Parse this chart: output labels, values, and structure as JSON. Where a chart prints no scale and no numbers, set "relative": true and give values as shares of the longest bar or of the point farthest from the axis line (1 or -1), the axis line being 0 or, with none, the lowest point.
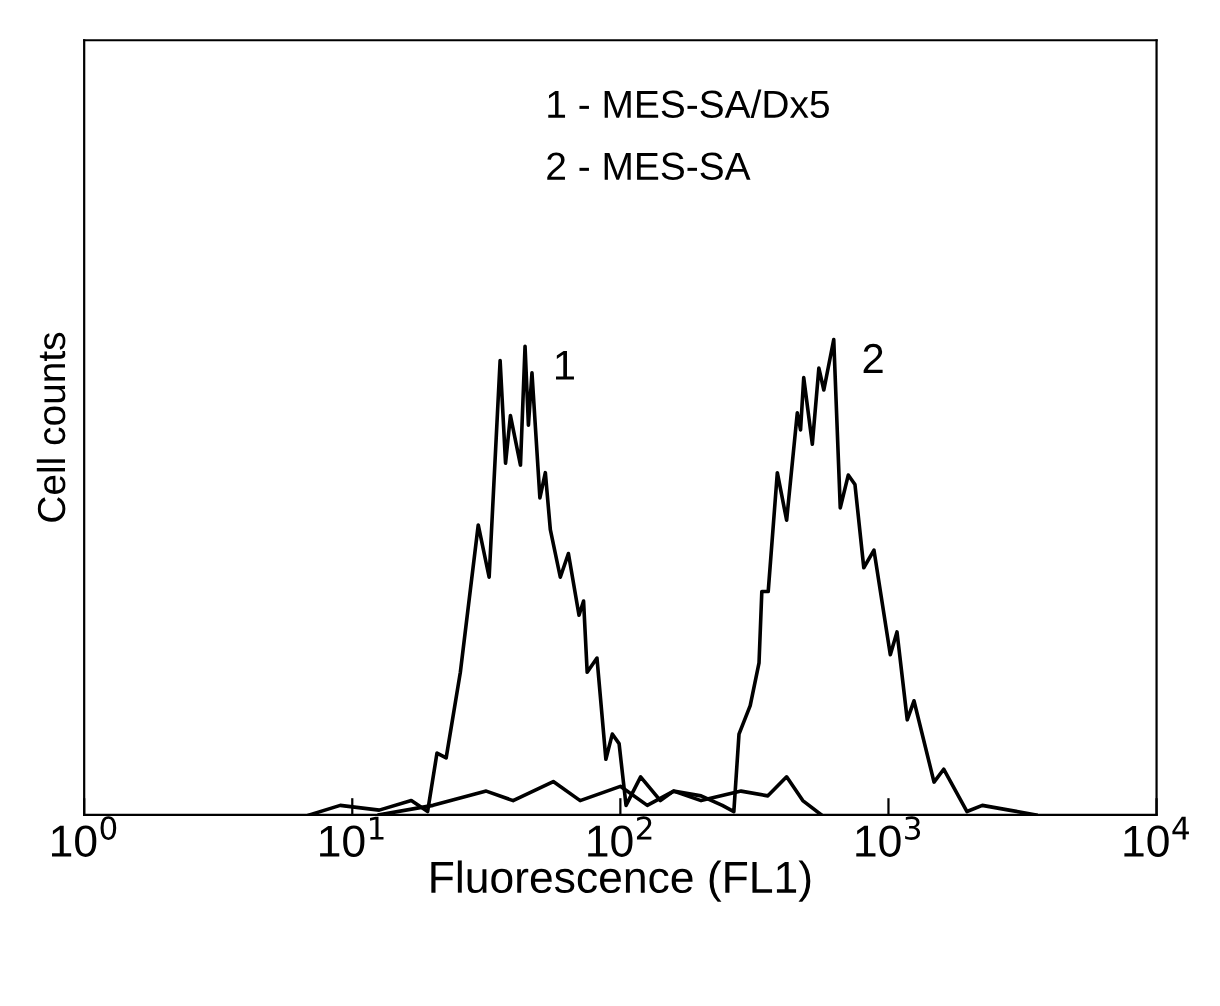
{
  "chart_data": {
    "type": "line",
    "xlabel": "Fluorescence (FL1)",
    "ylabel": "Cell counts",
    "relative": true,
    "log": "x",
    "xlim": [
      1,
      10000
    ],
    "xticks": [
      {
        "value": 1,
        "label": "10$^{0}$"
      },
      {
        "value": 10,
        "label": "10$^{1}$"
      },
      {
        "value": 100,
        "label": "10$^{2}$"
      },
      {
        "value": 1000,
        "label": "10$^{3}$"
      },
      {
        "value": 10000,
        "label": "10$^{4}$"
      }
    ],
    "tick_labels": "x",
    "grid": false,
    "legend": false,
    "marker": "none",
    "line_style": "solid",
    "series": [
      {
        "name": "1",
        "color": "#000000",
        "x": [
          6.92,
          9.02,
          12.6,
          16.6,
          19.1,
          20.7,
          22.4,
          25.3,
          29.5,
          32.4,
          35.6,
          37.3,
          38.9,
          42.4,
          44.1,
          45.4,
          46.8,
          50.1,
          52.5,
          54.8,
          59.7,
          64.0,
          70.1,
          72.9,
          75.2,
          81.8,
          88.3,
          93.3,
          98.9,
          105,
          119,
          141,
          158,
          200,
          282,
          355,
          417,
          479,
          562
        ],
        "values": [
          0,
          0.02,
          0.01,
          0.03,
          0.007,
          0.13,
          0.12,
          0.3,
          0.61,
          0.5,
          0.956,
          0.74,
          0.84,
          0.736,
          0.986,
          0.82,
          0.93,
          0.667,
          0.72,
          0.6,
          0.5,
          0.55,
          0.42,
          0.45,
          0.3,
          0.33,
          0.117,
          0.17,
          0.15,
          0.02,
          0.08,
          0.03,
          0.05,
          0.03,
          0.05,
          0.04,
          0.08,
          0.03,
          0
        ]
      },
      {
        "name": "2",
        "color": "#000000",
        "x": [
          12.6,
          20.0,
          31.6,
          39.8,
          56.2,
          70.8,
          100,
          126,
          158,
          200,
          240,
          265,
          277,
          305,
          329,
          337,
          356,
          385,
          417,
          457,
          470,
          483,
          520,
          550,
          574,
          625,
          661,
          708,
          750,
          809,
          883,
          1016,
          1076,
          1175,
          1245,
          1479,
          1607,
          1963,
          2239,
          2818,
          3548
        ],
        "values": [
          0,
          0.02,
          0.05,
          0.03,
          0.07,
          0.03,
          0.06,
          0.02,
          0.05,
          0.04,
          0.02,
          0.007,
          0.17,
          0.23,
          0.32,
          0.47,
          0.47,
          0.72,
          0.62,
          0.846,
          0.81,
          0.92,
          0.78,
          0.94,
          0.894,
          1.0,
          0.646,
          0.715,
          0.695,
          0.52,
          0.557,
          0.337,
          0.385,
          0.2,
          0.24,
          0.069,
          0.096,
          0.007,
          0.02,
          0.01,
          0
        ]
      }
    ],
    "annotations": [
      "1 - MES-SA/Dx5",
      "2 - MES-SA"
    ]
  }
}
